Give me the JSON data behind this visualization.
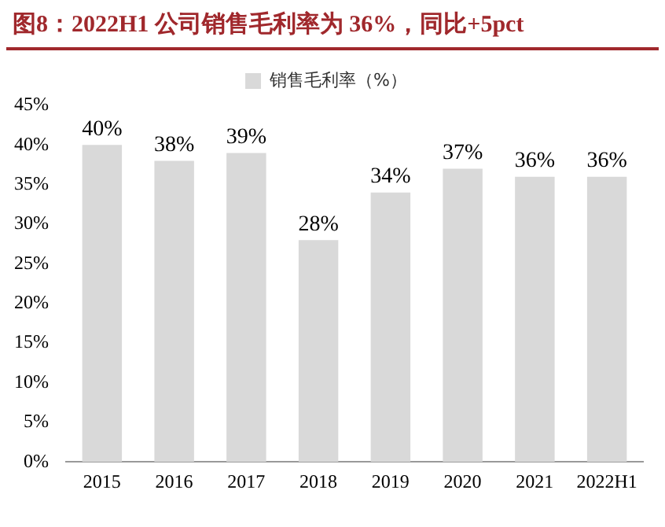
{
  "chart_data": {
    "type": "bar",
    "title": "图8：2022H1 公司销售毛利率为 36%，同比+5pct",
    "categories": [
      "2015",
      "2016",
      "2017",
      "2018",
      "2019",
      "2020",
      "2021",
      "2022H1"
    ],
    "series": [
      {
        "name": "销售毛利率（%）",
        "color": "#d9d9d9",
        "values": [
          40,
          38,
          39,
          28,
          34,
          37,
          36,
          36
        ],
        "value_labels": [
          "40%",
          "38%",
          "39%",
          "28%",
          "34%",
          "37%",
          "36%",
          "36%"
        ]
      }
    ],
    "ylim": [
      0,
      45
    ],
    "yticks": [
      {
        "value": 0,
        "label": "0%"
      },
      {
        "value": 5,
        "label": "5%"
      },
      {
        "value": 10,
        "label": "10%"
      },
      {
        "value": 15,
        "label": "15%"
      },
      {
        "value": 20,
        "label": "20%"
      },
      {
        "value": 25,
        "label": "25%"
      },
      {
        "value": 30,
        "label": "30%"
      },
      {
        "value": 35,
        "label": "35%"
      },
      {
        "value": 40,
        "label": "40%"
      },
      {
        "value": 45,
        "label": "45%"
      }
    ],
    "grid": false,
    "legend": "top"
  }
}
